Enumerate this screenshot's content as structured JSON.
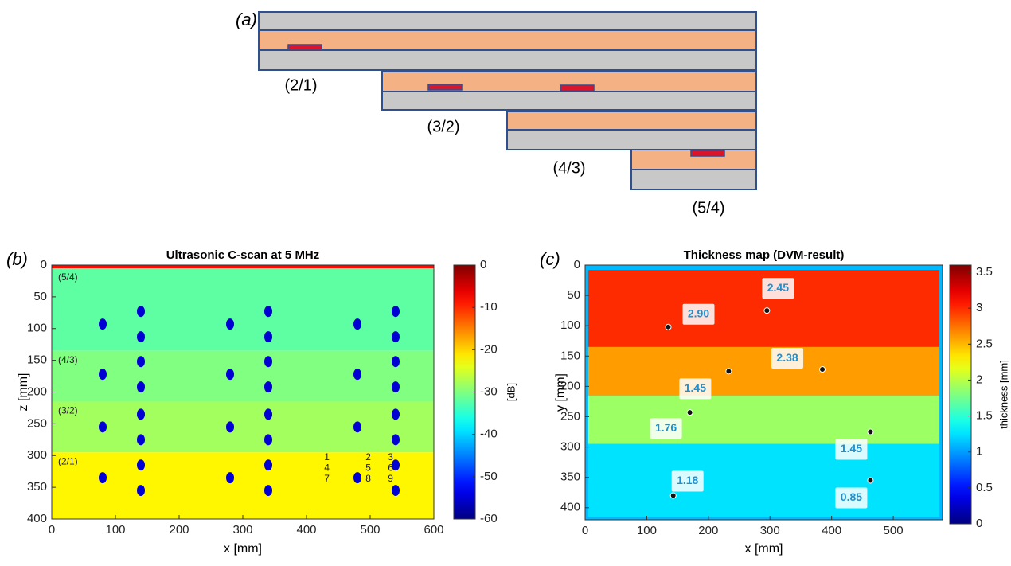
{
  "diagram": {
    "panel_label": "(a)",
    "labels": [
      "(2/1)",
      "(3/2)",
      "(4/3)",
      "(5/4)"
    ]
  },
  "chart_data": [
    {
      "type": "heatmap",
      "panel_label": "(b)",
      "title": "Ultrasonic C-scan at 5 MHz",
      "xlabel": "x [mm]",
      "ylabel": "z [mm]",
      "xlim": [
        0,
        600
      ],
      "ylim": [
        400,
        0
      ],
      "xticks": [
        0,
        100,
        200,
        300,
        400,
        500,
        600
      ],
      "yticks": [
        0,
        50,
        100,
        150,
        200,
        250,
        300,
        350,
        400
      ],
      "colormap": "jet",
      "clim": [
        -60,
        0
      ],
      "cticks": [
        0,
        -10,
        -20,
        -30,
        -40,
        -50,
        -60
      ],
      "clabel": "[dB]",
      "bands": {
        "x0": [
          0,
          0,
          0,
          0,
          0
        ],
        "x1": [
          600,
          600,
          600,
          600,
          600
        ],
        "y0": [
          0,
          5,
          135,
          215,
          295
        ],
        "y1": [
          5,
          135,
          215,
          295,
          400
        ],
        "values": [
          -8,
          -32,
          -30,
          -28,
          -22
        ],
        "labels": [
          null,
          "(5/4)",
          "(4/3)",
          "(3/2)",
          "(2/1)"
        ]
      },
      "spots": {
        "x": [
          80,
          140,
          140,
          280,
          340,
          340,
          480,
          540,
          540,
          80,
          140,
          140,
          280,
          340,
          340,
          480,
          540,
          540,
          80,
          140,
          140,
          280,
          340,
          340,
          480,
          540,
          540,
          80,
          140,
          140,
          280,
          340,
          340,
          480,
          540,
          540
        ],
        "y": [
          93,
          73,
          113,
          93,
          73,
          113,
          93,
          73,
          113,
          172,
          152,
          192,
          172,
          152,
          192,
          172,
          152,
          192,
          255,
          235,
          275,
          255,
          235,
          275,
          255,
          235,
          275,
          335,
          315,
          355,
          335,
          315,
          355,
          335,
          315,
          355
        ],
        "values": [
          -55,
          -55,
          -55,
          -55,
          -55,
          -55,
          -55,
          -55,
          -55,
          -55,
          -55,
          -55,
          -55,
          -55,
          -55,
          -55,
          -55,
          -55,
          -55,
          -55,
          -55,
          -55,
          -55,
          -55,
          -55,
          -55,
          -55,
          -55,
          -55,
          -55,
          -55,
          -55,
          -55,
          -55,
          -55,
          -55
        ]
      },
      "annotations": [
        {
          "text": "1",
          "x": 432,
          "y": 303
        },
        {
          "text": "2",
          "x": 497,
          "y": 303
        },
        {
          "text": "3",
          "x": 532,
          "y": 303
        },
        {
          "text": "4",
          "x": 432,
          "y": 320
        },
        {
          "text": "5",
          "x": 497,
          "y": 320
        },
        {
          "text": "6",
          "x": 532,
          "y": 320
        },
        {
          "text": "7",
          "x": 432,
          "y": 337
        },
        {
          "text": "8",
          "x": 497,
          "y": 337
        },
        {
          "text": "9",
          "x": 532,
          "y": 337
        }
      ]
    },
    {
      "type": "heatmap",
      "panel_label": "(c)",
      "title": "Thickness map (DVM-result)",
      "xlabel": "x [mm]",
      "ylabel": "y [mm]",
      "xlim": [
        0,
        580
      ],
      "ylim": [
        420,
        0
      ],
      "xticks": [
        0,
        100,
        200,
        300,
        400,
        500
      ],
      "yticks": [
        0,
        50,
        100,
        150,
        200,
        250,
        300,
        350,
        400
      ],
      "colormap": "jet",
      "clim": [
        0,
        3.6
      ],
      "cticks": [
        0,
        0.5,
        1,
        1.5,
        2,
        2.5,
        3,
        3.5
      ],
      "clabel": "thickness [mm]",
      "bands": {
        "x0": [
          0,
          5,
          5,
          5,
          5
        ],
        "x1": [
          580,
          575,
          575,
          575,
          575
        ],
        "y0": [
          0,
          8,
          135,
          215,
          295
        ],
        "y1": [
          420,
          135,
          215,
          295,
          415
        ],
        "values": [
          1.1,
          3.0,
          2.6,
          1.9,
          1.25
        ],
        "labels": [
          null,
          null,
          null,
          null,
          null
        ]
      },
      "points": {
        "x": [
          135,
          295,
          385,
          233,
          170,
          463,
          143,
          463
        ],
        "y": [
          102,
          75,
          172,
          175,
          243,
          275,
          380,
          355
        ],
        "values": [
          2.9,
          2.45,
          2.38,
          1.45,
          1.76,
          1.45,
          1.18,
          0.85
        ],
        "value_labels": [
          "2.90",
          "2.45",
          "2.38",
          "1.45",
          "1.76",
          "1.45",
          "1.18",
          "0.85"
        ]
      }
    }
  ]
}
